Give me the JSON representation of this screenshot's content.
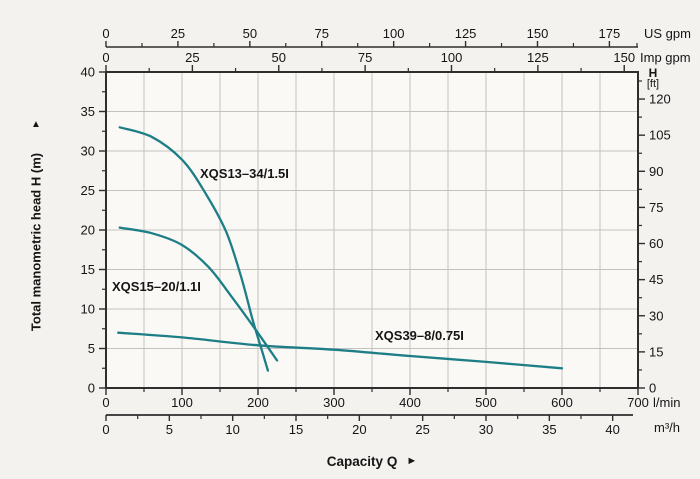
{
  "chart_data": {
    "type": "line",
    "title": "",
    "xlabel": "Capacity Q",
    "ylabel": "Total manometric head H (m)",
    "x_arrow": "►",
    "y_arrow": "▲",
    "grid": true,
    "colors": {
      "curve": "#1d7e86",
      "axis": "#2e2e2e",
      "grid": "#c3c2bf",
      "plot_bg": "#faf9f6",
      "page_bg": "#f3f2ef"
    },
    "axes": {
      "l_min": {
        "unit": "l/min",
        "min": 0,
        "max": 700,
        "major": 100,
        "minor": 50,
        "ticks": [
          0,
          100,
          200,
          300,
          400,
          500,
          600,
          700
        ]
      },
      "m3_h": {
        "unit": "m³/h",
        "min": 0,
        "max": 40,
        "major": 5,
        "minor": 2.5,
        "lmin_per_unit": 16.6667,
        "ticks": [
          0,
          5,
          10,
          15,
          20,
          25,
          30,
          35,
          40
        ]
      },
      "us_gpm": {
        "unit": "US gpm",
        "min": 0,
        "max_major": 175,
        "major": 25,
        "minor": 12.5,
        "lmin_per_unit": 3.785,
        "end_tick": true,
        "ticks": [
          0,
          25,
          50,
          75,
          100,
          125,
          150,
          175
        ]
      },
      "imp_gpm": {
        "unit": "Imp gpm",
        "min": 0,
        "max_major": 150,
        "major": 25,
        "minor": 12.5,
        "lmin_per_unit": 4.546,
        "end_tick": false,
        "ticks": [
          0,
          25,
          50,
          75,
          100,
          125,
          150
        ]
      },
      "head_m": {
        "unit": "m",
        "min": 0,
        "max": 40,
        "major": 5,
        "minor": 2.5,
        "ticks": [
          0,
          5,
          10,
          15,
          20,
          25,
          30,
          35,
          40
        ]
      },
      "head_ft": {
        "unit_lines": [
          "H",
          "[ft]"
        ],
        "min": 0,
        "max_major": 120,
        "major": 15,
        "minor": 7.5,
        "m_per_unit": 0.3048,
        "ticks": [
          0,
          15,
          30,
          45,
          60,
          75,
          90,
          105,
          120
        ]
      }
    },
    "series": [
      {
        "id": "xqs13-34",
        "name": "XQS13–34/1.5I",
        "label_at": [
          124,
          26.6
        ],
        "points": [
          [
            18,
            33
          ],
          [
            60,
            31.8
          ],
          [
            100,
            28.9
          ],
          [
            130,
            24.8
          ],
          [
            158,
            19.8
          ],
          [
            178,
            14
          ],
          [
            193,
            8.6
          ],
          [
            205,
            4.8
          ],
          [
            213,
            2.2
          ]
        ]
      },
      {
        "id": "xqs15-20",
        "name": "XQS15–20/1.1I",
        "label_at": [
          8,
          12.3
        ],
        "points": [
          [
            18,
            20.3
          ],
          [
            60,
            19.6
          ],
          [
            100,
            18.1
          ],
          [
            135,
            15.3
          ],
          [
            165,
            11.6
          ],
          [
            196,
            7.5
          ],
          [
            225,
            3.5
          ]
        ]
      },
      {
        "id": "xqs39-8",
        "name": "XQS39–8/0.75I",
        "label_at": [
          354,
          6.1
        ],
        "points": [
          [
            16,
            7
          ],
          [
            100,
            6.4
          ],
          [
            200,
            5.4
          ],
          [
            300,
            4.85
          ],
          [
            400,
            4.05
          ],
          [
            500,
            3.3
          ],
          [
            600,
            2.5
          ]
        ]
      }
    ]
  }
}
